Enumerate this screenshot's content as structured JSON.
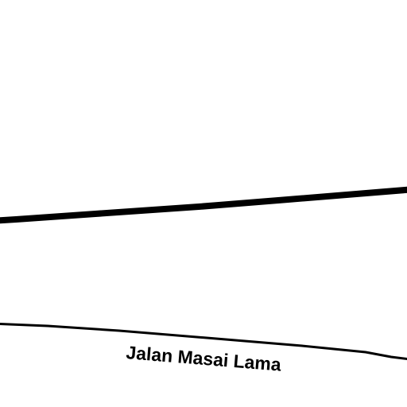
{
  "map": {
    "background_color": "#ffffff",
    "road_color": "#000000",
    "roads": [
      {
        "id": "major-road",
        "class": "major",
        "label": ""
      },
      {
        "id": "jalan-masai-lama",
        "class": "minor",
        "label": "Jalan Masai Lama"
      }
    ]
  }
}
